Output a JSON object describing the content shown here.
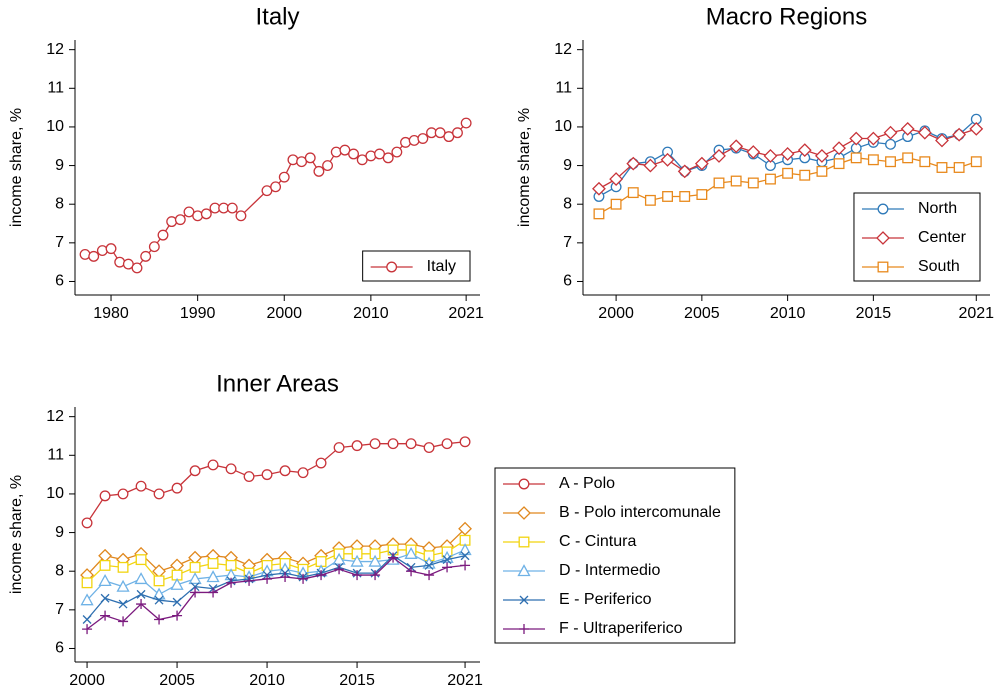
{
  "chart_data": [
    {
      "type": "line",
      "title": "Italy",
      "y_label": "income share, %",
      "x": [
        1977,
        1978,
        1979,
        1980,
        1981,
        1982,
        1983,
        1984,
        1985,
        1986,
        1987,
        1988,
        1989,
        1990,
        1991,
        1992,
        1993,
        1994,
        1995,
        1998,
        1999,
        2000,
        2001,
        2002,
        2003,
        2004,
        2005,
        2006,
        2007,
        2008,
        2009,
        2010,
        2011,
        2012,
        2013,
        2014,
        2015,
        2016,
        2017,
        2018,
        2019,
        2020,
        2021
      ],
      "series": [
        {
          "name": "Italy",
          "color": "#c8343a",
          "marker": "circle",
          "values": [
            6.7,
            6.65,
            6.8,
            6.85,
            6.5,
            6.45,
            6.35,
            6.65,
            6.9,
            7.2,
            7.55,
            7.6,
            7.8,
            7.7,
            7.75,
            7.9,
            7.9,
            7.9,
            7.7,
            8.35,
            8.45,
            8.7,
            9.15,
            9.1,
            9.2,
            8.85,
            9.0,
            9.35,
            9.4,
            9.3,
            9.15,
            9.25,
            9.3,
            9.2,
            9.35,
            9.6,
            9.65,
            9.7,
            9.85,
            9.85,
            9.75,
            9.85,
            10.1
          ]
        }
      ],
      "xlim": [
        1975.84,
        2022.6
      ],
      "xticks": [
        1980,
        1990,
        2000,
        2010,
        2021
      ],
      "ylim": [
        5.65,
        12.25
      ],
      "yticks": [
        6,
        7,
        8,
        9,
        10,
        11,
        12
      ],
      "legend": "bottom-right"
    },
    {
      "type": "line",
      "title": "Macro Regions",
      "y_label": "income share, %",
      "x": [
        1999,
        2000,
        2001,
        2002,
        2003,
        2004,
        2005,
        2006,
        2007,
        2008,
        2009,
        2010,
        2011,
        2012,
        2013,
        2014,
        2015,
        2016,
        2017,
        2018,
        2019,
        2020,
        2021
      ],
      "series": [
        {
          "name": "North",
          "color": "#2f7ab9",
          "marker": "circle",
          "values": [
            8.2,
            8.45,
            9.05,
            9.1,
            9.35,
            8.85,
            9.0,
            9.4,
            9.45,
            9.3,
            9.0,
            9.15,
            9.2,
            9.1,
            9.2,
            9.45,
            9.6,
            9.55,
            9.75,
            9.9,
            9.7,
            9.8,
            10.2
          ]
        },
        {
          "name": "Center",
          "color": "#c8343a",
          "marker": "diamond",
          "values": [
            8.4,
            8.65,
            9.05,
            9.0,
            9.15,
            8.85,
            9.05,
            9.25,
            9.5,
            9.35,
            9.25,
            9.3,
            9.4,
            9.25,
            9.45,
            9.7,
            9.7,
            9.85,
            9.95,
            9.85,
            9.65,
            9.8,
            9.95
          ]
        },
        {
          "name": "South",
          "color": "#e8891c",
          "marker": "square",
          "values": [
            7.75,
            8.0,
            8.3,
            8.1,
            8.2,
            8.2,
            8.25,
            8.55,
            8.6,
            8.55,
            8.65,
            8.8,
            8.75,
            8.85,
            9.05,
            9.2,
            9.15,
            9.1,
            9.2,
            9.1,
            8.95,
            8.95,
            9.1
          ]
        }
      ],
      "xlim": [
        1998.07,
        2021.8
      ],
      "xticks": [
        2000,
        2005,
        2010,
        2015,
        2021
      ],
      "ylim": [
        5.65,
        12.25
      ],
      "yticks": [
        6,
        7,
        8,
        9,
        10,
        11,
        12
      ],
      "legend": "bottom-right"
    },
    {
      "type": "line",
      "title": "Inner Areas",
      "y_label": "income share, %",
      "x": [
        2000,
        2001,
        2002,
        2003,
        2004,
        2005,
        2006,
        2007,
        2008,
        2009,
        2010,
        2011,
        2012,
        2013,
        2014,
        2015,
        2016,
        2017,
        2018,
        2019,
        2020,
        2021
      ],
      "series": [
        {
          "name": "A - Polo",
          "color": "#c8343a",
          "marker": "circle",
          "values": [
            9.25,
            9.95,
            10.0,
            10.2,
            10.0,
            10.15,
            10.6,
            10.75,
            10.65,
            10.45,
            10.5,
            10.6,
            10.55,
            10.8,
            11.2,
            11.25,
            11.3,
            11.3,
            11.3,
            11.2,
            11.3,
            11.35
          ]
        },
        {
          "name": "B - Polo intercomunale",
          "color": "#e0881e",
          "marker": "diamond",
          "values": [
            7.9,
            8.4,
            8.3,
            8.45,
            8.0,
            8.15,
            8.35,
            8.4,
            8.35,
            8.15,
            8.3,
            8.35,
            8.2,
            8.4,
            8.6,
            8.65,
            8.65,
            8.7,
            8.7,
            8.6,
            8.65,
            9.1
          ]
        },
        {
          "name": "C - Cintura",
          "color": "#f2d40f",
          "marker": "square",
          "values": [
            7.7,
            8.15,
            8.1,
            8.3,
            7.75,
            7.9,
            8.1,
            8.2,
            8.15,
            7.95,
            8.15,
            8.2,
            8.05,
            8.25,
            8.45,
            8.45,
            8.45,
            8.55,
            8.55,
            8.4,
            8.5,
            8.8
          ]
        },
        {
          "name": "D - Intermedio",
          "color": "#6fb2e6",
          "marker": "triangle",
          "values": [
            7.25,
            7.75,
            7.6,
            7.8,
            7.4,
            7.65,
            7.8,
            7.85,
            7.9,
            7.85,
            8.0,
            8.05,
            7.95,
            8.0,
            8.3,
            8.25,
            8.25,
            8.3,
            8.45,
            8.2,
            8.35,
            8.55
          ]
        },
        {
          "name": "E - Periferico",
          "color": "#2e6fb0",
          "marker": "x",
          "values": [
            6.75,
            7.3,
            7.15,
            7.4,
            7.25,
            7.2,
            7.6,
            7.55,
            7.75,
            7.8,
            7.9,
            7.95,
            7.85,
            7.95,
            8.1,
            7.95,
            7.95,
            8.4,
            8.1,
            8.15,
            8.3,
            8.4
          ]
        },
        {
          "name": "F - Ultraperiferico",
          "color": "#7b1a7e",
          "marker": "plus",
          "values": [
            6.5,
            6.85,
            6.7,
            7.15,
            6.75,
            6.85,
            7.45,
            7.45,
            7.7,
            7.75,
            7.8,
            7.85,
            7.8,
            7.9,
            8.05,
            7.9,
            7.9,
            8.35,
            8.0,
            7.9,
            8.1,
            8.15
          ]
        }
      ],
      "xlim": [
        1999.33,
        2021.83
      ],
      "xticks": [
        2000,
        2005,
        2010,
        2015,
        2021
      ],
      "ylim": [
        5.65,
        12.25
      ],
      "yticks": [
        6,
        7,
        8,
        9,
        10,
        11,
        12
      ],
      "legend": "right"
    }
  ]
}
